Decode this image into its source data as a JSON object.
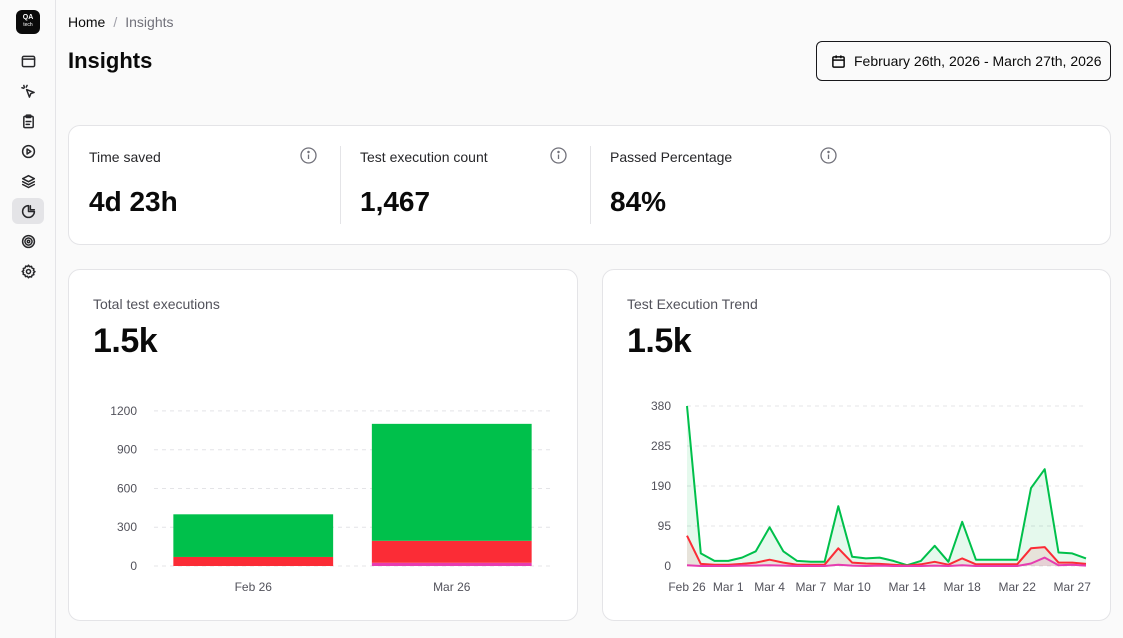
{
  "sidebar": {
    "logo_top": "QA",
    "logo_bottom": "tech",
    "items": [
      {
        "name": "browser-icon",
        "active": false
      },
      {
        "name": "cursor-click-icon",
        "active": false
      },
      {
        "name": "clipboard-icon",
        "active": false
      },
      {
        "name": "play-circle-icon",
        "active": false
      },
      {
        "name": "layers-icon",
        "active": false
      },
      {
        "name": "pie-chart-icon",
        "active": true
      },
      {
        "name": "target-icon",
        "active": false
      },
      {
        "name": "gear-icon",
        "active": false
      }
    ]
  },
  "breadcrumb": {
    "home": "Home",
    "separator": "/",
    "current": "Insights"
  },
  "page": {
    "title": "Insights"
  },
  "date_range": {
    "label": "February 26th, 2026 - March 27th, 2026"
  },
  "stats": [
    {
      "label": "Time saved",
      "value": "4d 23h"
    },
    {
      "label": "Test execution count",
      "value": "1,467"
    },
    {
      "label": "Passed Percentage",
      "value": "84%"
    }
  ],
  "colors": {
    "passed": "#00c04b",
    "failed": "#fb2c36",
    "other": "#e63cb0",
    "grid": "#e4e4e7"
  },
  "chart_data": [
    {
      "type": "bar",
      "title": "Total test executions",
      "summary": "1.5k",
      "categories": [
        "Feb 26",
        "Mar 26"
      ],
      "yticks": [
        "0",
        "300",
        "600",
        "900",
        "1200"
      ],
      "ylim": [
        0,
        1300
      ],
      "stacked": true,
      "series": [
        {
          "name": "other",
          "values": [
            0,
            25
          ]
        },
        {
          "name": "failed",
          "values": [
            70,
            170
          ]
        },
        {
          "name": "passed",
          "values": [
            330,
            905
          ]
        }
      ]
    },
    {
      "type": "area",
      "title": "Test Execution Trend",
      "summary": "1.5k",
      "xticks": [
        "Feb 26",
        "Mar 1",
        "Mar 4",
        "Mar 7",
        "Mar 10",
        "Mar 14",
        "Mar 18",
        "Mar 22",
        "Mar 27"
      ],
      "xtick_index": [
        0,
        3,
        6,
        9,
        12,
        16,
        20,
        24,
        28
      ],
      "yticks": [
        "0",
        "95",
        "190",
        "285",
        "380"
      ],
      "ylim": [
        0,
        380
      ],
      "series": [
        {
          "name": "passed",
          "values": [
            380,
            30,
            12,
            12,
            20,
            35,
            92,
            35,
            12,
            10,
            10,
            142,
            22,
            18,
            20,
            12,
            2,
            12,
            48,
            10,
            105,
            15,
            15,
            15,
            15,
            185,
            230,
            32,
            30,
            18
          ]
        },
        {
          "name": "failed",
          "values": [
            72,
            5,
            3,
            3,
            5,
            8,
            15,
            8,
            3,
            3,
            3,
            42,
            8,
            6,
            5,
            3,
            1,
            4,
            10,
            3,
            18,
            4,
            4,
            4,
            4,
            42,
            45,
            8,
            8,
            5
          ]
        },
        {
          "name": "other",
          "values": [
            2,
            0,
            0,
            0,
            1,
            1,
            2,
            1,
            0,
            0,
            0,
            3,
            1,
            0,
            1,
            0,
            0,
            0,
            1,
            0,
            2,
            0,
            0,
            0,
            0,
            6,
            20,
            2,
            3,
            1
          ]
        }
      ]
    }
  ]
}
